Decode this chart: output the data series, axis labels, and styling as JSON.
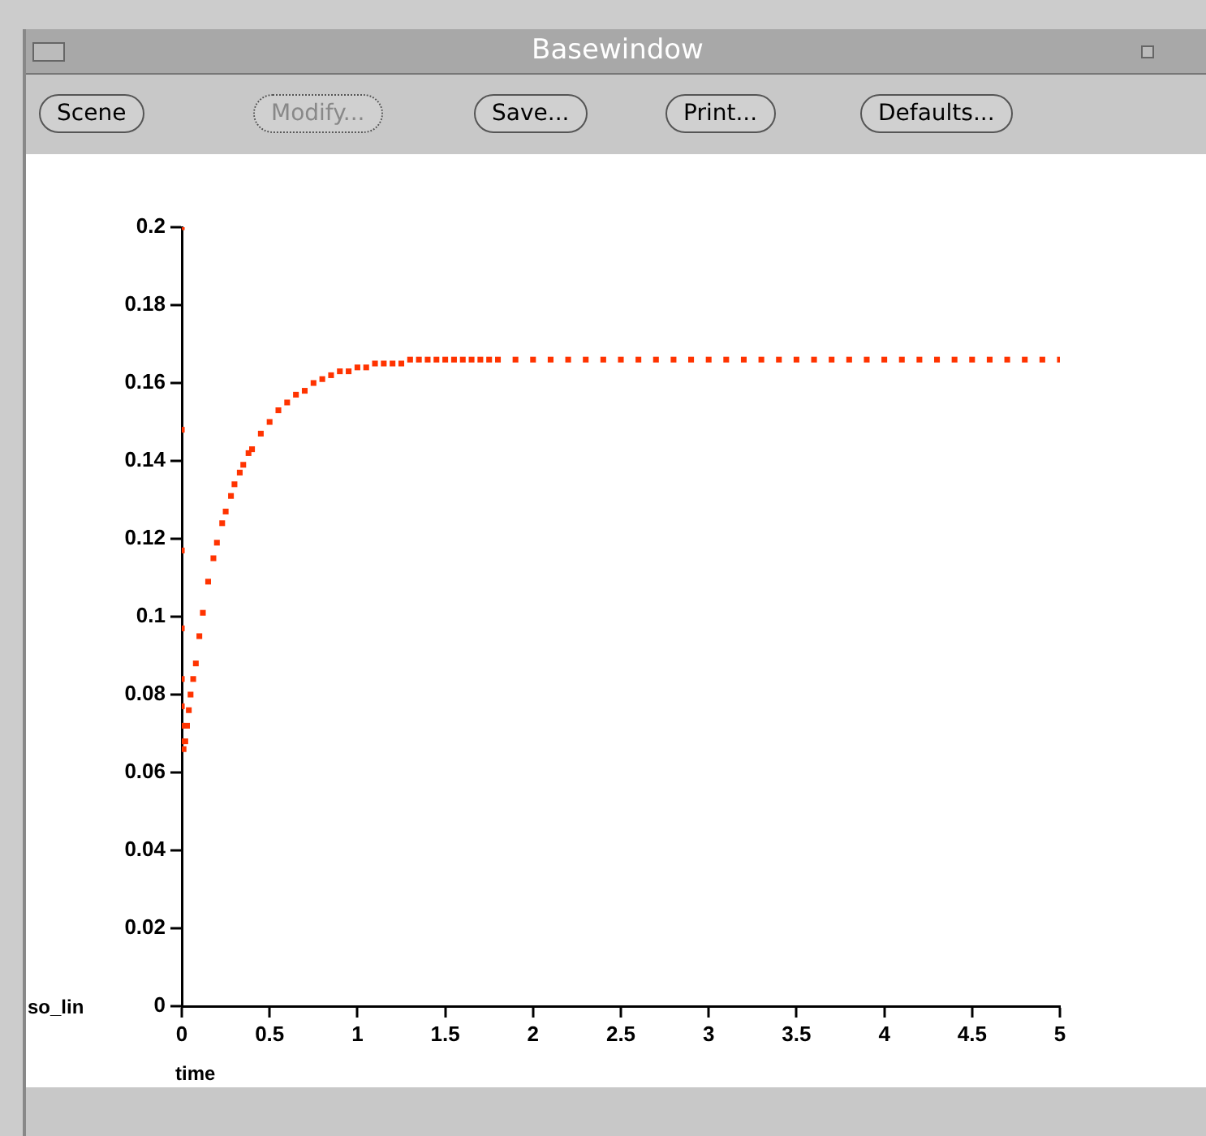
{
  "chart_data": {
    "type": "scatter",
    "title": "Basewindow",
    "xlabel": "time",
    "ylabel": "so_lin",
    "annotations": [
      "Scene",
      "Modify...",
      "Save...",
      "Print...",
      "Defaults..."
    ],
    "xlim": [
      0,
      5
    ],
    "xticks": [
      0,
      0.5,
      1,
      1.5,
      2,
      2.5,
      3,
      3.5,
      4,
      4.5,
      5
    ],
    "ylim": [
      0,
      0.2
    ],
    "yticks": [
      0,
      0.02,
      0.04,
      0.06,
      0.08,
      0.1,
      0.12,
      0.14,
      0.16,
      0.18,
      0.2
    ],
    "grid": false,
    "legend": false,
    "marker": "square",
    "series": [
      {
        "color": "#ff3300",
        "x": [
          0,
          0,
          0,
          0,
          0,
          0,
          0,
          0,
          0.01,
          0.02,
          0.03,
          0.04,
          0.05,
          0.065,
          0.08,
          0.1,
          0.12,
          0.15,
          0.18,
          0.2,
          0.23,
          0.25,
          0.28,
          0.3,
          0.33,
          0.35,
          0.38,
          0.4,
          0.45,
          0.5,
          0.55,
          0.6,
          0.65,
          0.7,
          0.75,
          0.8,
          0.85,
          0.9,
          0.95,
          1.0,
          1.05,
          1.1,
          1.15,
          1.2,
          1.25,
          1.3,
          1.35,
          1.4,
          1.45,
          1.5,
          1.55,
          1.6,
          1.65,
          1.7,
          1.75,
          1.8,
          1.9,
          2.0,
          2.1,
          2.2,
          2.3,
          2.4,
          2.5,
          2.6,
          2.7,
          2.8,
          2.9,
          3.0,
          3.1,
          3.2,
          3.3,
          3.4,
          3.5,
          3.6,
          3.7,
          3.8,
          3.9,
          4.0,
          4.1,
          4.2,
          4.3,
          4.4,
          4.5,
          4.6,
          4.7,
          4.8,
          4.9,
          5.0
        ],
        "values": [
          0.2,
          0.148,
          0.117,
          0.097,
          0.084,
          0.077,
          0.072,
          0.068,
          0.066,
          0.068,
          0.072,
          0.076,
          0.08,
          0.084,
          0.088,
          0.095,
          0.101,
          0.109,
          0.115,
          0.119,
          0.124,
          0.127,
          0.131,
          0.134,
          0.137,
          0.139,
          0.142,
          0.143,
          0.147,
          0.15,
          0.153,
          0.155,
          0.157,
          0.158,
          0.16,
          0.161,
          0.162,
          0.163,
          0.163,
          0.164,
          0.164,
          0.165,
          0.165,
          0.165,
          0.165,
          0.166,
          0.166,
          0.166,
          0.166,
          0.166,
          0.166,
          0.166,
          0.166,
          0.166,
          0.166,
          0.166,
          0.166,
          0.166,
          0.166,
          0.166,
          0.166,
          0.166,
          0.166,
          0.166,
          0.166,
          0.166,
          0.166,
          0.166,
          0.166,
          0.166,
          0.166,
          0.166,
          0.166,
          0.166,
          0.166,
          0.166,
          0.166,
          0.166,
          0.166,
          0.166,
          0.166,
          0.166,
          0.166,
          0.166,
          0.166,
          0.166,
          0.166,
          0.166
        ]
      }
    ]
  }
}
